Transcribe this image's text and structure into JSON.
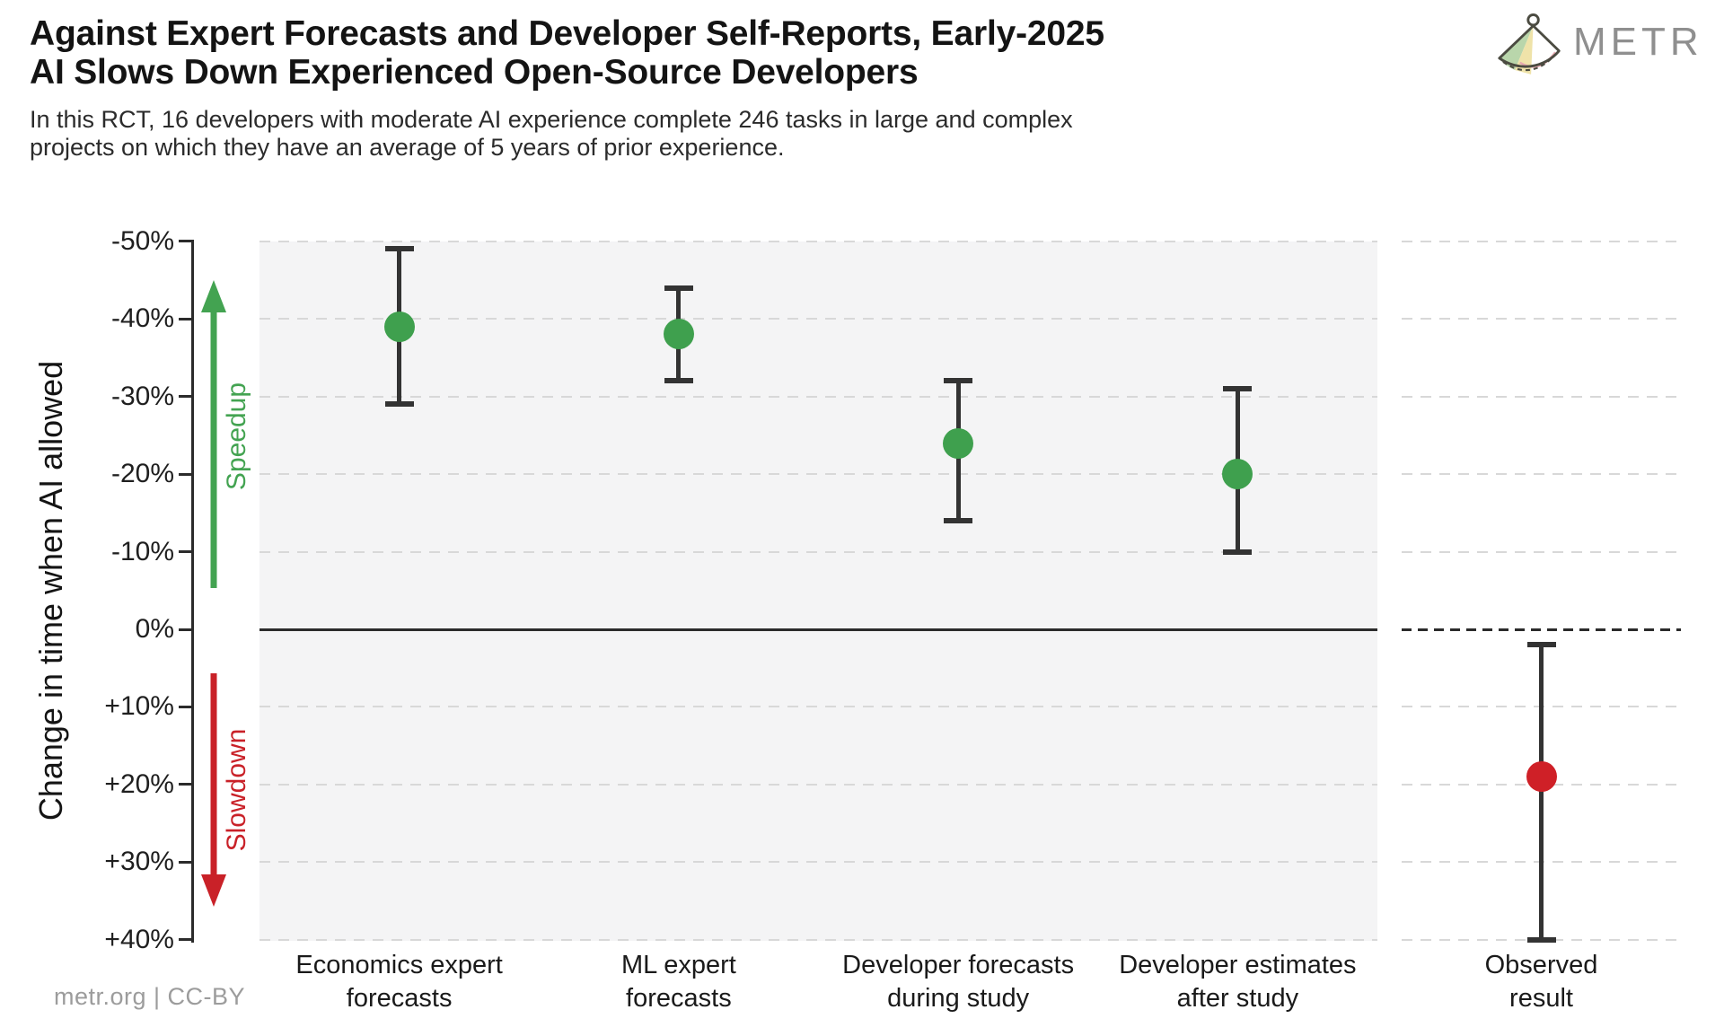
{
  "header": {
    "title_line1": "Against Expert Forecasts and Developer Self-Reports, Early-2025",
    "title_line2": "AI Slows Down Experienced Open-Source Developers",
    "subtitle_line1": "In this RCT, 16 developers with moderate AI experience complete 246 tasks in large and complex",
    "subtitle_line2": "projects on which they have an average of 5 years of prior experience.",
    "brand": "METR"
  },
  "footer": {
    "credit": "metr.org  |  CC-BY"
  },
  "chart_data": {
    "type": "scatter",
    "title": "Against Expert Forecasts and Developer Self-Reports, Early-2025 AI Slows Down Experienced Open-Source Developers",
    "ylabel": "Change in time when AI allowed",
    "y_axis_inverted": true,
    "ylim": [
      -50,
      40
    ],
    "ytick_values": [
      -50,
      -40,
      -30,
      -20,
      -10,
      0,
      10,
      20,
      30,
      40
    ],
    "ytick_labels": [
      "-50%",
      "-40%",
      "-30%",
      "-20%",
      "-10%",
      "0%",
      "+10%",
      "+20%",
      "+30%",
      "+40%"
    ],
    "grid": "horizontal-dashed",
    "zero_line_value": 0,
    "errorbar_color": "#333333",
    "annotations": [
      {
        "text": "Speedup",
        "direction": "up",
        "color": "#43a351"
      },
      {
        "text": "Slowdown",
        "direction": "down",
        "color": "#c92128"
      }
    ],
    "series": [
      {
        "category": "Economics expert forecasts",
        "label_lines": [
          "Economics expert",
          "forecasts"
        ],
        "panel": "main",
        "value": -39,
        "ci": [
          -49,
          -29
        ],
        "color": "#3fa04e"
      },
      {
        "category": "ML expert forecasts",
        "label_lines": [
          "ML expert",
          "forecasts"
        ],
        "panel": "main",
        "value": -38,
        "ci": [
          -44,
          -32
        ],
        "color": "#3fa04e"
      },
      {
        "category": "Developer forecasts during study",
        "label_lines": [
          "Developer forecasts",
          "during study"
        ],
        "panel": "main",
        "value": -24,
        "ci": [
          -32,
          -14
        ],
        "color": "#3fa04e"
      },
      {
        "category": "Developer estimates after study",
        "label_lines": [
          "Developer estimates",
          "after study"
        ],
        "panel": "main",
        "value": -20,
        "ci": [
          -31,
          -10
        ],
        "color": "#3fa04e"
      },
      {
        "category": "Observed result",
        "label_lines": [
          "Observed",
          "result"
        ],
        "panel": "right",
        "value": 19,
        "ci": [
          2,
          40
        ],
        "color": "#cf2027"
      }
    ]
  }
}
